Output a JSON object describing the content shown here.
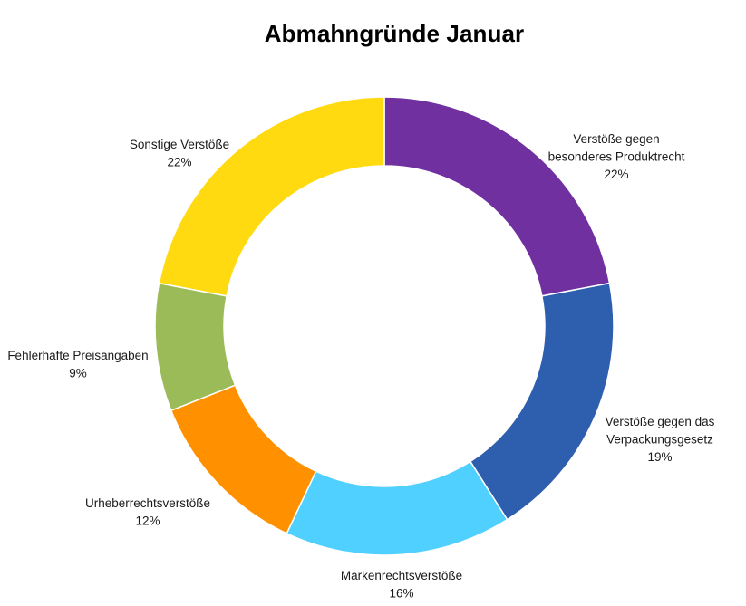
{
  "chart_data": {
    "type": "pie",
    "donut": true,
    "title": "Abmahngründe Januar",
    "slices": [
      {
        "label_lines": [
          "Verstöße gegen",
          "besonderes Produktrecht"
        ],
        "percent_label": "22%",
        "value": 22,
        "color": "#7030A0"
      },
      {
        "label_lines": [
          "Verstöße gegen das",
          "Verpackungsgesetz"
        ],
        "percent_label": "19%",
        "value": 19,
        "color": "#2E5EAE"
      },
      {
        "label_lines": [
          "Markenrechtsverstöße"
        ],
        "percent_label": "16%",
        "value": 16,
        "color": "#4FD0FF"
      },
      {
        "label_lines": [
          "Urheberrechtsverstöße"
        ],
        "percent_label": "12%",
        "value": 12,
        "color": "#FF9000"
      },
      {
        "label_lines": [
          "Fehlerhafte Preisangaben"
        ],
        "percent_label": "9%",
        "value": 9,
        "color": "#9BBB59"
      },
      {
        "label_lines": [
          "Sonstige Verstöße"
        ],
        "percent_label": "22%",
        "value": 22,
        "color": "#FFDA10"
      }
    ],
    "legend": "none"
  }
}
